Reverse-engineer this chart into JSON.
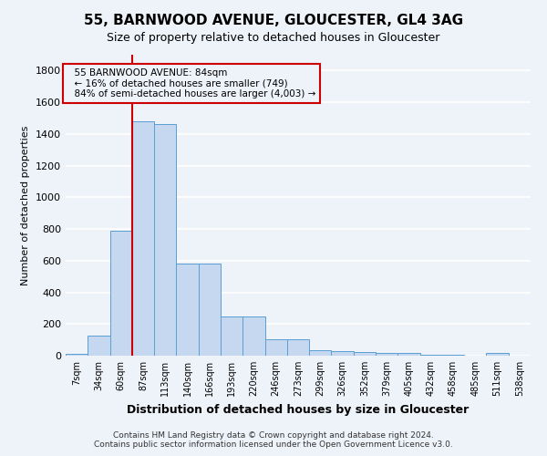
{
  "title": "55, BARNWOOD AVENUE, GLOUCESTER, GL4 3AG",
  "subtitle": "Size of property relative to detached houses in Gloucester",
  "xlabel": "Distribution of detached houses by size in Gloucester",
  "ylabel": "Number of detached properties",
  "footnote1": "Contains HM Land Registry data © Crown copyright and database right 2024.",
  "footnote2": "Contains public sector information licensed under the Open Government Licence v3.0.",
  "categories": [
    "7sqm",
    "34sqm",
    "60sqm",
    "87sqm",
    "113sqm",
    "140sqm",
    "166sqm",
    "193sqm",
    "220sqm",
    "246sqm",
    "273sqm",
    "299sqm",
    "326sqm",
    "352sqm",
    "379sqm",
    "405sqm",
    "432sqm",
    "458sqm",
    "485sqm",
    "511sqm",
    "538sqm"
  ],
  "values": [
    10,
    125,
    790,
    1480,
    1460,
    580,
    580,
    245,
    245,
    105,
    105,
    35,
    30,
    25,
    20,
    20,
    5,
    5,
    0,
    15,
    0
  ],
  "bar_color": "#c5d8f0",
  "bar_edge_color": "#5a9fd4",
  "annotation_box_color": "#cc0000",
  "annotation_line1": "  55 BARNWOOD AVENUE: 84sqm",
  "annotation_line2": "  ← 16% of detached houses are smaller (749)",
  "annotation_line3": "  84% of semi-detached houses are larger (4,003) →",
  "property_line_x": 2.5,
  "ylim": [
    0,
    1900
  ],
  "yticks": [
    0,
    200,
    400,
    600,
    800,
    1000,
    1200,
    1400,
    1600,
    1800
  ],
  "background_color": "#eef2f9",
  "grid_color": "#ffffff",
  "title_fontsize": 11,
  "subtitle_fontsize": 9,
  "ylabel_fontsize": 8,
  "xlabel_fontsize": 9,
  "tick_fontsize": 7,
  "footnote_fontsize": 6.5
}
